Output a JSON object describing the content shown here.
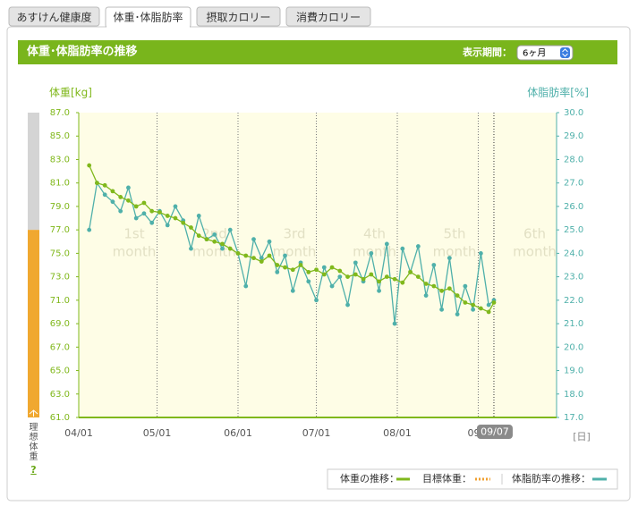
{
  "tabs": [
    "あすけん健康度",
    "体重･体脂肪率",
    "摂取カロリー",
    "消費カロリー"
  ],
  "header": {
    "title": "体重･体脂肪率の推移",
    "period_label": "表示期間：",
    "period_value": "6ヶ月"
  },
  "chart_data": {
    "type": "line",
    "ylabel": "体重[kg]",
    "y2label": "体脂肪率[%]",
    "xlabel": "[日]",
    "xlim": [
      "04/01",
      "10/01"
    ],
    "xticks": [
      "04/01",
      "05/01",
      "06/01",
      "07/01",
      "08/01",
      {
        "value": "09/01",
        "label": "09"
      }
    ],
    "current_date": "09/07",
    "ylim": [
      61,
      87
    ],
    "yticks": [
      {
        "value": 61,
        "label": "61.0"
      },
      {
        "value": 63,
        "label": "63.0"
      },
      {
        "value": 65,
        "label": "65.0"
      },
      {
        "value": 67,
        "label": "67.0"
      },
      {
        "value": 69,
        "label": "69.0"
      },
      {
        "value": 71,
        "label": "71.0"
      },
      {
        "value": 73,
        "label": "73.0"
      },
      {
        "value": 75,
        "label": "75.0"
      },
      {
        "value": 77,
        "label": "77.0"
      },
      {
        "value": 79,
        "label": "79.0"
      },
      {
        "value": 81,
        "label": "81.0"
      },
      {
        "value": 83,
        "label": "83.0"
      },
      {
        "value": 85,
        "label": "85.0"
      },
      {
        "value": 87,
        "label": "87.0"
      }
    ],
    "y2lim": [
      17,
      30
    ],
    "y2ticks": [
      {
        "value": 17,
        "label": "17.0"
      },
      {
        "value": 18,
        "label": "18.0"
      },
      {
        "value": 19,
        "label": "19.0"
      },
      {
        "value": 20,
        "label": "20.0"
      },
      {
        "value": 21,
        "label": "21.0"
      },
      {
        "value": 22,
        "label": "22.0"
      },
      {
        "value": 23,
        "label": "23.0"
      },
      {
        "value": 24,
        "label": "24.0"
      },
      {
        "value": 25,
        "label": "25.0"
      },
      {
        "value": 26,
        "label": "26.0"
      },
      {
        "value": 27,
        "label": "27.0"
      },
      {
        "value": 28,
        "label": "28.0"
      },
      {
        "value": 29,
        "label": "29.0"
      },
      {
        "value": 30,
        "label": "30.0"
      }
    ],
    "month_labels": [
      "1st",
      "2nd",
      "3rd",
      "4th",
      "5th",
      "6th"
    ],
    "month_word": "month",
    "ideal_weight_max": 77,
    "ideal_label": [
      "理",
      "想",
      "体",
      "重"
    ],
    "help": "?",
    "x": [
      "04/05",
      "04/08",
      "04/11",
      "04/14",
      "04/17",
      "04/20",
      "04/23",
      "04/26",
      "04/29",
      "05/02",
      "05/05",
      "05/08",
      "05/11",
      "05/14",
      "05/17",
      "05/20",
      "05/23",
      "05/26",
      "05/29",
      "06/01",
      "06/04",
      "06/07",
      "06/10",
      "06/13",
      "06/16",
      "06/19",
      "06/22",
      "06/25",
      "06/28",
      "07/01",
      "07/04",
      "07/07",
      "07/10",
      "07/13",
      "07/16",
      "07/19",
      "07/22",
      "07/25",
      "07/28",
      "07/31",
      "08/03",
      "08/06",
      "08/09",
      "08/12",
      "08/15",
      "08/18",
      "08/21",
      "08/24",
      "08/27",
      "08/30",
      "09/02",
      "09/05",
      "09/07"
    ],
    "series": [
      {
        "name": "体重の推移：",
        "color": "#80b81c",
        "axis": "y",
        "values": [
          82.5,
          81.0,
          80.8,
          80.3,
          79.8,
          79.5,
          79.0,
          79.3,
          78.6,
          78.5,
          78.2,
          78.0,
          77.6,
          77.2,
          76.5,
          76.2,
          76.0,
          75.8,
          75.4,
          75.0,
          74.8,
          74.6,
          74.3,
          74.8,
          74.0,
          73.8,
          73.6,
          74.0,
          73.4,
          73.6,
          73.2,
          73.8,
          73.5,
          73.0,
          73.2,
          72.8,
          73.2,
          72.6,
          73.0,
          72.8,
          72.5,
          73.4,
          73.0,
          72.4,
          72.2,
          71.8,
          72.0,
          71.4,
          70.8,
          70.6,
          70.3,
          70.0,
          70.8
        ]
      },
      {
        "name": "体脂肪率の推移：",
        "color": "#4fb0aa",
        "axis": "y2",
        "values": [
          25.0,
          27.0,
          26.5,
          26.2,
          25.8,
          26.8,
          25.5,
          25.7,
          25.3,
          25.8,
          25.2,
          26.0,
          25.4,
          24.2,
          25.6,
          24.6,
          24.8,
          24.2,
          25.0,
          24.0,
          22.6,
          24.6,
          23.8,
          24.5,
          23.2,
          23.9,
          22.4,
          23.6,
          22.8,
          22.0,
          23.4,
          22.6,
          23.0,
          21.8,
          23.6,
          22.8,
          24.0,
          22.4,
          24.4,
          21.0,
          24.2,
          23.2,
          24.3,
          22.2,
          23.5,
          21.6,
          23.8,
          21.4,
          22.6,
          21.6,
          24.0,
          21.8,
          22.0
        ]
      }
    ],
    "target": {
      "name": "目標体重：",
      "color": "#f0a030"
    }
  }
}
